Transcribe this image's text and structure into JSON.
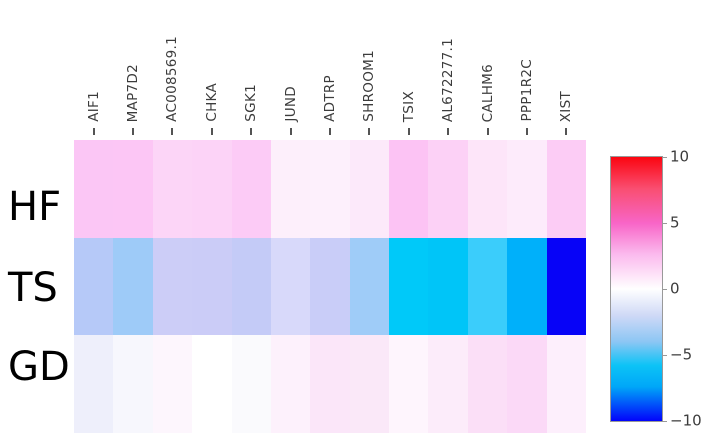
{
  "figure": {
    "background": "#ffffff",
    "tick_color": "#545454",
    "col_label_color": "#3c3c3c",
    "row_label_color": "#000000"
  },
  "chart_data": {
    "type": "heatmap",
    "title": "",
    "xlabel": "",
    "ylabel": "",
    "columns": [
      "AIF1",
      "MAP7D2",
      "AC008569.1",
      "CHKA",
      "SGK1",
      "JUND",
      "ADTRP",
      "SHROOM1",
      "TSIX",
      "AL672277.1",
      "CALHM6",
      "PPP1R2C",
      "XIST"
    ],
    "rows": [
      "HF",
      "TS",
      "GD"
    ],
    "cell_colors": [
      [
        "#fbc6f5",
        "#fcc6f5",
        "#fcd5f7",
        "#fcd3f7",
        "#fccbf6",
        "#fdeffb",
        "#fdf0fc",
        "#fce9fa",
        "#fcc3f4",
        "#fcd1f6",
        "#fde5f9",
        "#fdebfb",
        "#fcccf5"
      ],
      [
        "#b6c9f8",
        "#9ecbf8",
        "#cccdf7",
        "#cbccf7",
        "#c4cbf7",
        "#d8d9fa",
        "#c9cdf8",
        "#9fccf8",
        "#00c9f9",
        "#00c5f8",
        "#3bcdfb",
        "#00b0fa",
        "#0703f7"
      ],
      [
        "#eeeffb",
        "#f7f7fd",
        "#fdf6fd",
        "#ffffff",
        "#fafafd",
        "#fdf1fc",
        "#fbe6f9",
        "#fae8f8",
        "#fef5fd",
        "#fcecfa",
        "#fbdff7",
        "#fbd9f7",
        "#fdeffc"
      ]
    ],
    "values_est": [
      [
        2.5,
        2.5,
        1.9,
        2.0,
        2.3,
        0.8,
        0.7,
        1.0,
        2.7,
        2.1,
        1.2,
        0.9,
        2.2
      ],
      [
        -3.1,
        -3.9,
        -2.3,
        -2.3,
        -2.6,
        -1.7,
        -2.4,
        -3.9,
        -5.7,
        -5.9,
        -5.2,
        -6.6,
        -9.8
      ],
      [
        -0.6,
        -0.3,
        0.3,
        0.0,
        -0.2,
        0.5,
        1.1,
        1.0,
        0.4,
        0.8,
        1.4,
        1.6,
        0.7
      ]
    ],
    "colorbar": {
      "min": -10,
      "max": 10,
      "tick_values": [
        10,
        5,
        0,
        -5,
        -10
      ],
      "tick_labels": [
        "10",
        "5",
        "0",
        "−5",
        "−10"
      ],
      "legend_position": "right",
      "border_color": "#999999",
      "gradient_stops": [
        {
          "color": "#fb0510",
          "pos": "0%"
        },
        {
          "color": "#f94e71",
          "pos": "12%"
        },
        {
          "color": "#f865c7",
          "pos": "25%"
        },
        {
          "color": "#fbbbee",
          "pos": "37%"
        },
        {
          "color": "#ffffff",
          "pos": "50%"
        },
        {
          "color": "#cfd9f6",
          "pos": "60%"
        },
        {
          "color": "#8cc6f4",
          "pos": "70%"
        },
        {
          "color": "#0cc3f6",
          "pos": "79%"
        },
        {
          "color": "#00a7f8",
          "pos": "87%"
        },
        {
          "color": "#0203fb",
          "pos": "100%"
        }
      ]
    }
  }
}
